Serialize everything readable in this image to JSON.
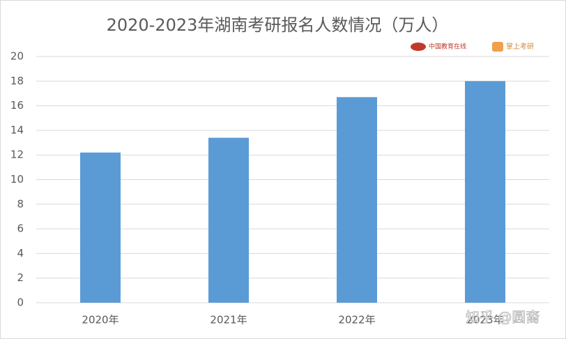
{
  "chart_data": {
    "type": "bar",
    "title": "2020-2023年湖南考研报名人数情况（万人）",
    "categories": [
      "2020年",
      "2021年",
      "2022年",
      "2023年"
    ],
    "values": [
      12.2,
      13.4,
      16.7,
      18.0
    ],
    "color": "#5b9bd5",
    "ylim": [
      0,
      20
    ],
    "yticks": [
      0,
      2,
      4,
      6,
      8,
      10,
      12,
      14,
      16,
      18,
      20
    ],
    "grid": true
  },
  "logos": [
    "中国教育在线",
    "掌上考研"
  ],
  "watermark": "知乎 @圆裔"
}
